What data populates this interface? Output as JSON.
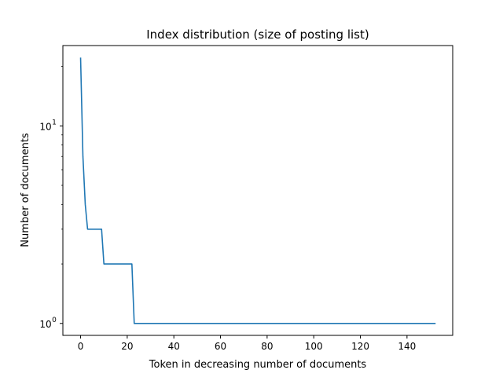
{
  "chart_data": {
    "type": "line",
    "title": "Index distribution (size of posting list)",
    "xlabel": "Token in decreasing number of documents",
    "ylabel": "Number of documents",
    "yscale": "log",
    "xlim": [
      -7.6,
      159.6
    ],
    "ylim": [
      0.87,
      25.5
    ],
    "grid": false,
    "legend": "none",
    "color": "#1f77b4",
    "x_ticks": [
      0,
      20,
      40,
      60,
      80,
      100,
      120,
      140
    ],
    "x_tick_labels": [
      "0",
      "20",
      "40",
      "60",
      "80",
      "100",
      "120",
      "140"
    ],
    "y_major_ticks": [
      1,
      10
    ],
    "y_tick_labels": [
      {
        "base": "10",
        "exp": "0"
      },
      {
        "base": "10",
        "exp": "1"
      }
    ],
    "y_minor_ticks": [
      2,
      3,
      4,
      5,
      6,
      7,
      8,
      9,
      20
    ],
    "series": [
      {
        "x": [
          0,
          1,
          2,
          3,
          4,
          5,
          6,
          7,
          8,
          9,
          10,
          11,
          12,
          13,
          14,
          15,
          16,
          17,
          18,
          19,
          20,
          21,
          22,
          23,
          152
        ],
        "values": [
          22,
          7,
          4,
          3,
          3,
          3,
          3,
          3,
          3,
          3,
          2,
          2,
          2,
          2,
          2,
          2,
          2,
          2,
          2,
          2,
          2,
          2,
          2,
          1,
          1
        ]
      }
    ]
  }
}
